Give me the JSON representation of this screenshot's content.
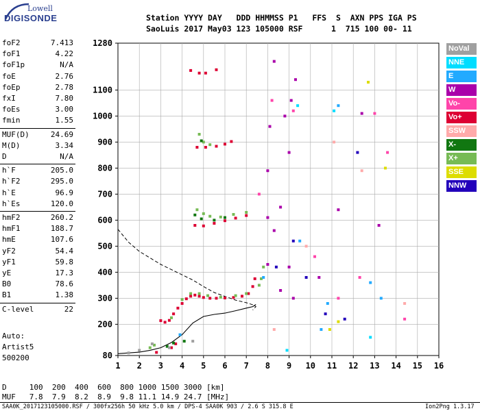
{
  "logo": {
    "line1": "Lowell",
    "line2": "DIGISONDE"
  },
  "header": {
    "row1": "Station YYYY DAY   DDD HHMMSS P1   FFS  S  AXN PPS IGA PS",
    "row2": "SaoLuis 2017 May03 123 105000 RSF      1  715 100 00- 11"
  },
  "params": [
    {
      "name": "foF2",
      "value": "7.413"
    },
    {
      "name": "foF1",
      "value": "4.22"
    },
    {
      "name": "foF1p",
      "value": "N/A"
    },
    {
      "name": "foE",
      "value": "2.76"
    },
    {
      "name": "foEp",
      "value": "2.78"
    },
    {
      "name": "fxI",
      "value": "7.80"
    },
    {
      "name": "foEs",
      "value": "3.00"
    },
    {
      "name": "fmin",
      "value": "1.55"
    },
    {
      "name": "MUF(D)",
      "value": "24.69"
    },
    {
      "name": "M(D)",
      "value": "3.34"
    },
    {
      "name": "D",
      "value": "N/A"
    },
    {
      "name": "h`F",
      "value": "205.0"
    },
    {
      "name": "h`F2",
      "value": "295.0"
    },
    {
      "name": "h`E",
      "value": "96.9"
    },
    {
      "name": "h`Es",
      "value": "120.0"
    },
    {
      "name": "hmF2",
      "value": "260.2"
    },
    {
      "name": "hmF1",
      "value": "188.7"
    },
    {
      "name": "hmE",
      "value": "107.6"
    },
    {
      "name": "yF2",
      "value": "54.4"
    },
    {
      "name": "yF1",
      "value": "59.8"
    },
    {
      "name": "yE",
      "value": "17.3"
    },
    {
      "name": "B0",
      "value": "78.6"
    },
    {
      "name": "B1",
      "value": "1.38"
    },
    {
      "name": "C-level",
      "value": "22"
    }
  ],
  "autoscaling": {
    "line1": "Auto:",
    "line2": "Artist5",
    "line3": "500200"
  },
  "legend": [
    {
      "label": "NoVal",
      "color": "#a0a0a0"
    },
    {
      "label": "NNE",
      "color": "#00ddff"
    },
    {
      "label": "E",
      "color": "#22aaff"
    },
    {
      "label": "W",
      "color": "#aa00aa"
    },
    {
      "label": "Vo-",
      "color": "#ff44aa"
    },
    {
      "label": "Vo+",
      "color": "#dd0033"
    },
    {
      "label": "SSW",
      "color": "#ffaaaa"
    },
    {
      "label": "X-",
      "color": "#117711"
    },
    {
      "label": "X+",
      "color": "#77bb55"
    },
    {
      "label": "SSE",
      "color": "#dddd00"
    },
    {
      "label": "NNW",
      "color": "#2200bb"
    }
  ],
  "footer": {
    "row_d": "D     100  200  400  600  800 1000 1500 3000 [km]",
    "row_muf": "MUF   7.8  7.9  8.2  8.9  9.8 11.1 14.9 24.7 [MHz]",
    "status_left": "SAA0K_2017123105000.RSF / 300fx256h 50 kHz 5.0 km / DPS-4 SAA0K 903 / 2.6 S 315.8 E",
    "status_right": "Ion2Png 1.3.17"
  },
  "chart_data": {
    "type": "scatter",
    "title": "",
    "xlabel": "",
    "ylabel": "",
    "x_ticks": [
      "1",
      "2",
      "3",
      "4",
      "5",
      "6",
      "7",
      "8",
      "9",
      "10",
      "11",
      "12",
      "13",
      "14",
      "15",
      "16"
    ],
    "y_ticks": [
      "80",
      "200",
      "300",
      "400",
      "500",
      "600",
      "700",
      "800",
      "900",
      "1000",
      "1100",
      "1280"
    ],
    "xlim": [
      1,
      16
    ],
    "ylim": [
      80,
      1280
    ],
    "grid": true,
    "series": [
      {
        "name": "Vo+",
        "color": "#dd0033",
        "points": [
          [
            3.0,
            214
          ],
          [
            3.2,
            208
          ],
          [
            3.4,
            215
          ],
          [
            3.6,
            240
          ],
          [
            3.8,
            262
          ],
          [
            4.0,
            280
          ],
          [
            4.2,
            298
          ],
          [
            4.4,
            308
          ],
          [
            4.6,
            312
          ],
          [
            4.8,
            308
          ],
          [
            5.0,
            303
          ],
          [
            5.3,
            300
          ],
          [
            5.6,
            300
          ],
          [
            6.0,
            301
          ],
          [
            6.4,
            303
          ],
          [
            6.8,
            308
          ],
          [
            7.1,
            318
          ],
          [
            7.3,
            345
          ],
          [
            7.4,
            375
          ],
          [
            4.6,
            580
          ],
          [
            5.0,
            578
          ],
          [
            5.5,
            588
          ],
          [
            6.0,
            598
          ],
          [
            6.5,
            608
          ],
          [
            7.0,
            618
          ],
          [
            4.7,
            880
          ],
          [
            5.1,
            880
          ],
          [
            5.6,
            884
          ],
          [
            6.0,
            892
          ],
          [
            6.3,
            902
          ],
          [
            4.4,
            1175
          ],
          [
            4.8,
            1165
          ],
          [
            5.1,
            1165
          ],
          [
            5.6,
            1178
          ],
          [
            3.5,
            110
          ],
          [
            3.7,
            125
          ],
          [
            2.8,
            92
          ]
        ]
      },
      {
        "name": "X+",
        "color": "#77bb55",
        "points": [
          [
            3.5,
            225
          ],
          [
            4.0,
            295
          ],
          [
            4.4,
            318
          ],
          [
            4.8,
            318
          ],
          [
            5.2,
            310
          ],
          [
            5.8,
            304
          ],
          [
            6.5,
            310
          ],
          [
            7.0,
            318
          ],
          [
            7.6,
            350
          ],
          [
            7.7,
            375
          ],
          [
            7.8,
            420
          ],
          [
            4.7,
            640
          ],
          [
            5.0,
            625
          ],
          [
            5.3,
            615
          ],
          [
            5.8,
            612
          ],
          [
            6.4,
            622
          ],
          [
            7.0,
            630
          ],
          [
            4.8,
            930
          ],
          [
            5.0,
            900
          ],
          [
            5.3,
            890
          ],
          [
            2.5,
            110
          ],
          [
            2.7,
            120
          ]
        ]
      },
      {
        "name": "X-",
        "color": "#117711",
        "points": [
          [
            3.3,
            115
          ],
          [
            3.6,
            128
          ],
          [
            4.1,
            135
          ],
          [
            4.6,
            620
          ],
          [
            4.9,
            605
          ],
          [
            5.5,
            600
          ],
          [
            4.9,
            905
          ],
          [
            6.0,
            610
          ]
        ]
      },
      {
        "name": "W",
        "color": "#aa00aa",
        "points": [
          [
            8.0,
            430
          ],
          [
            8.0,
            610
          ],
          [
            8.0,
            790
          ],
          [
            8.1,
            960
          ],
          [
            8.3,
            560
          ],
          [
            8.3,
            1210
          ],
          [
            8.6,
            330
          ],
          [
            8.6,
            650
          ],
          [
            8.8,
            1000
          ],
          [
            9.0,
            420
          ],
          [
            9.0,
            860
          ],
          [
            9.1,
            1060
          ],
          [
            9.2,
            300
          ],
          [
            9.3,
            1140
          ],
          [
            10.4,
            380
          ],
          [
            11.3,
            640
          ],
          [
            12.4,
            1010
          ],
          [
            13.2,
            580
          ]
        ]
      },
      {
        "name": "Vo-",
        "color": "#ff44aa",
        "points": [
          [
            7.6,
            700
          ],
          [
            8.2,
            1060
          ],
          [
            9.2,
            1020
          ],
          [
            10.2,
            460
          ],
          [
            11.3,
            300
          ],
          [
            12.3,
            380
          ],
          [
            13.0,
            1010
          ],
          [
            13.6,
            860
          ],
          [
            14.4,
            220
          ]
        ]
      },
      {
        "name": "E",
        "color": "#22aaff",
        "points": [
          [
            3.9,
            160
          ],
          [
            7.8,
            380
          ],
          [
            9.5,
            520
          ],
          [
            10.8,
            280
          ],
          [
            11.3,
            1040
          ],
          [
            12.8,
            360
          ],
          [
            13.3,
            300
          ],
          [
            10.5,
            180
          ]
        ]
      },
      {
        "name": "NNE",
        "color": "#00ddff",
        "points": [
          [
            8.9,
            100
          ],
          [
            12.8,
            150
          ],
          [
            11.1,
            1020
          ],
          [
            9.4,
            1040
          ]
        ]
      },
      {
        "name": "SSW",
        "color": "#ffaaaa",
        "points": [
          [
            9.8,
            500
          ],
          [
            12.4,
            790
          ],
          [
            14.4,
            280
          ],
          [
            11.1,
            900
          ],
          [
            8.3,
            180
          ]
        ]
      },
      {
        "name": "SSE",
        "color": "#dddd00",
        "points": [
          [
            12.7,
            1130
          ],
          [
            13.5,
            800
          ],
          [
            10.9,
            180
          ],
          [
            11.3,
            210
          ]
        ]
      },
      {
        "name": "NNW",
        "color": "#2200bb",
        "points": [
          [
            8.4,
            420
          ],
          [
            9.2,
            520
          ],
          [
            10.7,
            240
          ],
          [
            11.6,
            220
          ],
          [
            12.2,
            860
          ],
          [
            9.8,
            380
          ]
        ]
      },
      {
        "name": "NoVal",
        "color": "#a0a0a0",
        "points": [
          [
            1.5,
            90
          ],
          [
            2.0,
            100
          ],
          [
            2.6,
            125
          ],
          [
            3.4,
            110
          ],
          [
            4.5,
            135
          ]
        ]
      }
    ],
    "profile_curve": [
      [
        1.0,
        87
      ],
      [
        1.5,
        90
      ],
      [
        2.0,
        93
      ],
      [
        2.5,
        100
      ],
      [
        3.0,
        110
      ],
      [
        3.5,
        130
      ],
      [
        4.0,
        160
      ],
      [
        4.5,
        205
      ],
      [
        5.0,
        230
      ],
      [
        5.5,
        238
      ],
      [
        6.0,
        243
      ],
      [
        6.5,
        252
      ],
      [
        7.0,
        262
      ],
      [
        7.3,
        268
      ],
      [
        7.45,
        276
      ]
    ],
    "dashed_curve": [
      [
        1.0,
        565
      ],
      [
        1.5,
        515
      ],
      [
        2.0,
        480
      ],
      [
        2.5,
        455
      ],
      [
        3.0,
        430
      ],
      [
        3.5,
        410
      ],
      [
        4.0,
        390
      ],
      [
        4.5,
        370
      ],
      [
        5.0,
        345
      ],
      [
        5.5,
        322
      ],
      [
        6.0,
        307
      ],
      [
        6.5,
        293
      ],
      [
        7.0,
        283
      ],
      [
        7.3,
        275
      ],
      [
        7.45,
        268
      ],
      [
        7.3,
        255
      ]
    ]
  }
}
